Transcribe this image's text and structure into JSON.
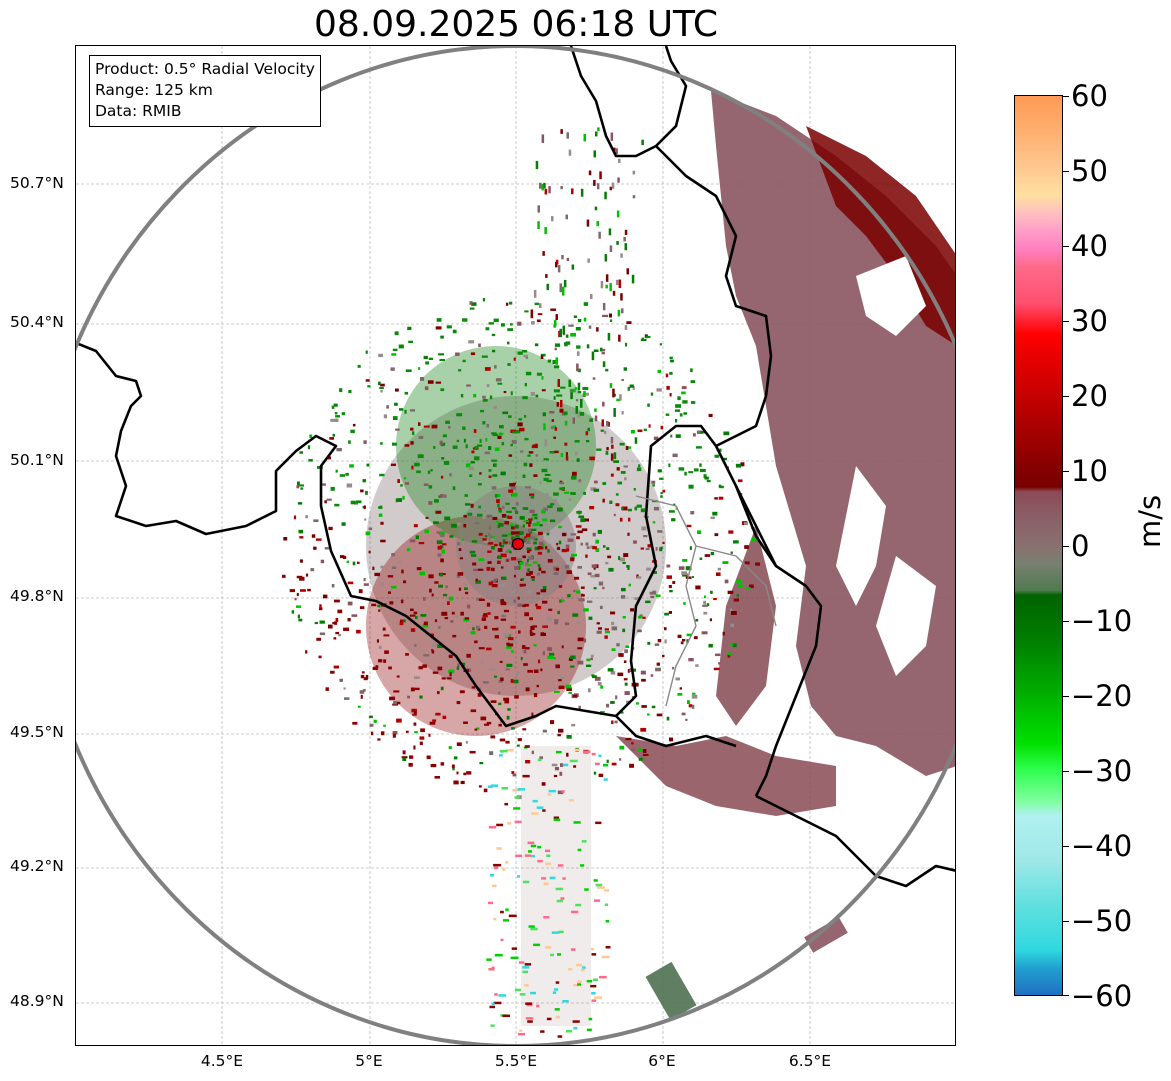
{
  "title": "08.09.2025 06:18 UTC",
  "info": {
    "product": "Product: 0.5° Radial Velocity",
    "range": "Range: 125 km",
    "source": "Data: RMIB"
  },
  "axes": {
    "lat_labels": [
      "50.7°N",
      "50.4°N",
      "50.1°N",
      "49.8°N",
      "49.5°N",
      "49.2°N",
      "48.9°N"
    ],
    "lon_labels": [
      "4.5°E",
      "5°E",
      "5.5°E",
      "6°E",
      "6.5°E"
    ]
  },
  "radar_site": {
    "label_color": "#e8000d"
  },
  "colorbar": {
    "ticks": [
      "60",
      "50",
      "40",
      "30",
      "20",
      "10",
      "0",
      "−10",
      "−20",
      "−30",
      "−40",
      "−50",
      "−60"
    ],
    "unit": "m/s",
    "min": -60,
    "max": 60
  },
  "colors": {
    "ring": "#808080",
    "border": "#000000",
    "inner_border": "#888888"
  }
}
